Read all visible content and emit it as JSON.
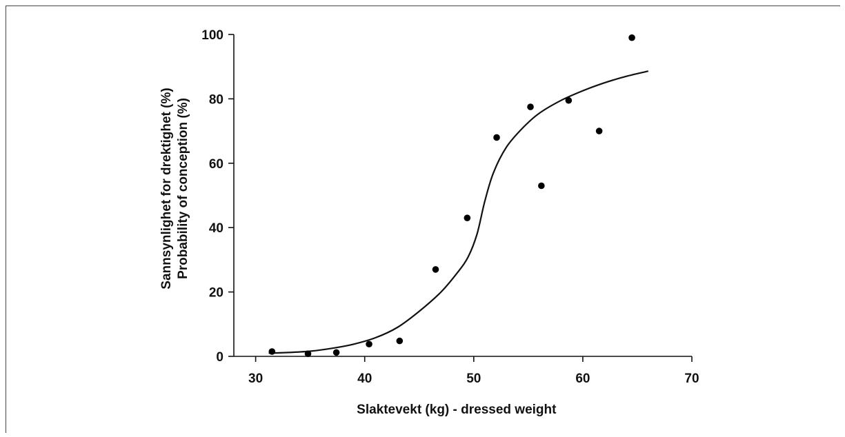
{
  "chart_data": {
    "type": "scatter",
    "xlabel": "Slaktevekt (kg) - dressed weight",
    "ylabel_lines": [
      "Sannsynlighet for drektighet (%)",
      "Probability of conception (%)"
    ],
    "xlim": [
      28,
      70
    ],
    "ylim": [
      0,
      100
    ],
    "xticks": [
      30,
      40,
      50,
      60,
      70
    ],
    "yticks": [
      0,
      20,
      40,
      60,
      80,
      100
    ],
    "grid": false,
    "points": [
      {
        "x": 31.5,
        "y": 1.5
      },
      {
        "x": 34.8,
        "y": 0.8
      },
      {
        "x": 37.4,
        "y": 1.2
      },
      {
        "x": 40.4,
        "y": 3.8
      },
      {
        "x": 43.2,
        "y": 4.8
      },
      {
        "x": 46.5,
        "y": 27
      },
      {
        "x": 49.4,
        "y": 43
      },
      {
        "x": 52.1,
        "y": 68
      },
      {
        "x": 55.2,
        "y": 77.5
      },
      {
        "x": 56.2,
        "y": 53
      },
      {
        "x": 58.7,
        "y": 79.5
      },
      {
        "x": 61.5,
        "y": 70
      },
      {
        "x": 64.5,
        "y": 99
      }
    ],
    "fit_curve": [
      {
        "x": 31.2,
        "y": 1.0
      },
      {
        "x": 33,
        "y": 1.2
      },
      {
        "x": 35,
        "y": 1.6
      },
      {
        "x": 37,
        "y": 2.5
      },
      {
        "x": 39,
        "y": 3.8
      },
      {
        "x": 41,
        "y": 5.8
      },
      {
        "x": 43,
        "y": 9
      },
      {
        "x": 45,
        "y": 14
      },
      {
        "x": 47,
        "y": 20
      },
      {
        "x": 48.5,
        "y": 26
      },
      {
        "x": 49.5,
        "y": 31
      },
      {
        "x": 50.3,
        "y": 38
      },
      {
        "x": 51,
        "y": 48
      },
      {
        "x": 51.8,
        "y": 57
      },
      {
        "x": 53,
        "y": 65
      },
      {
        "x": 54.5,
        "y": 71
      },
      {
        "x": 56,
        "y": 75.5
      },
      {
        "x": 58,
        "y": 79.5
      },
      {
        "x": 60,
        "y": 82.5
      },
      {
        "x": 62,
        "y": 85
      },
      {
        "x": 64,
        "y": 87
      },
      {
        "x": 66,
        "y": 88.6
      }
    ]
  }
}
